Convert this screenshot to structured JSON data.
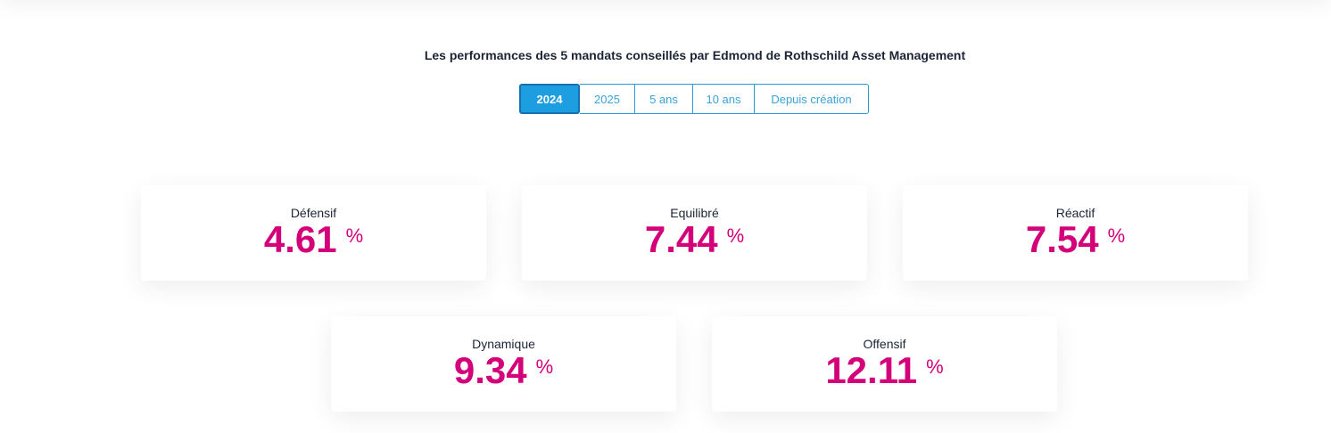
{
  "title": "Les performances des 5 mandats conseillés par Edmond de Rothschild Asset Management",
  "tabs": [
    {
      "label": "2024",
      "active": true
    },
    {
      "label": "2025"
    },
    {
      "label": "5 ans"
    },
    {
      "label": "10 ans"
    },
    {
      "label": "Depuis création"
    }
  ],
  "unit": "%",
  "cards": [
    {
      "label": "Défensif",
      "value": "4.61"
    },
    {
      "label": "Equilibré",
      "value": "7.44"
    },
    {
      "label": "Réactif",
      "value": "7.54"
    },
    {
      "label": "Dynamique",
      "value": "9.34"
    },
    {
      "label": "Offensif",
      "value": "12.11"
    }
  ],
  "colors": {
    "accent": "#1c9ee0",
    "value": "#d4007a"
  }
}
